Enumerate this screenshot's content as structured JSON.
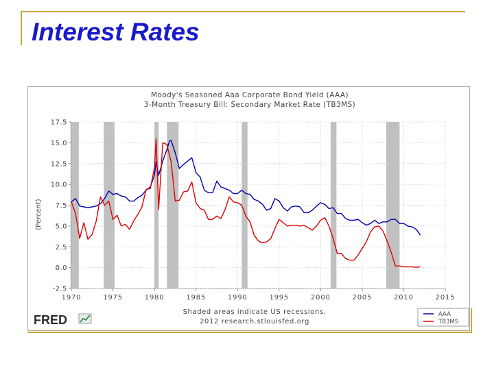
{
  "slide": {
    "title": "Interest Rates"
  },
  "chart_data": {
    "type": "line",
    "title": "Moody's Seasoned Aaa Corporate Bond Yield (AAA)",
    "subtitle": "3-Month Treasury Bill: Secondary Market Rate (TB3MS)",
    "ylabel": "(Percent)",
    "xlabel": "",
    "xlim": [
      1970,
      2015
    ],
    "ylim": [
      -2.5,
      17.5
    ],
    "x_ticks": [
      1970,
      1975,
      1980,
      1985,
      1990,
      1995,
      2000,
      2005,
      2010,
      2015
    ],
    "y_ticks": [
      -2.5,
      0.0,
      2.5,
      5.0,
      7.5,
      10.0,
      12.5,
      15.0,
      17.5
    ],
    "y_tick_labels": [
      "-2.5",
      "0.0",
      "2.5",
      "5.0",
      "7.5",
      "10.0",
      "12.5",
      "15.0",
      "17.5"
    ],
    "recessions": [
      [
        1969.9,
        1970.9
      ],
      [
        1973.9,
        1975.2
      ],
      [
        1980.0,
        1980.5
      ],
      [
        1981.5,
        1982.9
      ],
      [
        1990.5,
        1991.2
      ],
      [
        2001.2,
        2001.9
      ],
      [
        2007.9,
        2009.5
      ]
    ],
    "footnote": [
      "Shaded areas indicate US recessions.",
      "2012 research.stlouisfed.org"
    ],
    "logo_text": "FRED",
    "legend": {
      "placement": "bottom-right",
      "entries": [
        "AAA",
        "TB3MS"
      ]
    },
    "series": [
      {
        "name": "AAA",
        "color": "#0000aa",
        "x": [
          1970,
          1970.5,
          1971,
          1971.5,
          1972,
          1972.5,
          1973,
          1973.5,
          1974,
          1974.5,
          1975,
          1975.5,
          1976,
          1976.5,
          1977,
          1977.5,
          1978,
          1978.5,
          1979,
          1979.5,
          1980,
          1980.2,
          1980.5,
          1981,
          1981.5,
          1981.8,
          1982,
          1982.5,
          1983,
          1983.5,
          1984,
          1984.5,
          1985,
          1985.5,
          1986,
          1986.5,
          1987,
          1987.5,
          1988,
          1988.5,
          1989,
          1989.5,
          1990,
          1990.5,
          1991,
          1991.5,
          1992,
          1992.5,
          1993,
          1993.5,
          1994,
          1994.5,
          1995,
          1995.5,
          1996,
          1996.5,
          1997,
          1997.5,
          1998,
          1998.5,
          1999,
          1999.5,
          2000,
          2000.5,
          2001,
          2001.5,
          2002,
          2002.5,
          2003,
          2003.5,
          2004,
          2004.5,
          2005,
          2005.5,
          2006,
          2006.5,
          2007,
          2007.5,
          2008,
          2008.5,
          2009,
          2009.5,
          2010,
          2010.5,
          2011,
          2011.5,
          2012
        ],
        "y": [
          7.9,
          8.3,
          7.4,
          7.3,
          7.2,
          7.3,
          7.4,
          7.7,
          8.3,
          9.2,
          8.8,
          8.9,
          8.6,
          8.5,
          8.0,
          8.0,
          8.4,
          8.7,
          9.3,
          9.7,
          11.1,
          12.7,
          11.1,
          12.8,
          14.2,
          15.2,
          15.3,
          13.8,
          11.9,
          12.4,
          12.8,
          13.2,
          11.4,
          10.9,
          9.3,
          9.0,
          9.0,
          10.4,
          9.7,
          9.5,
          9.3,
          8.9,
          8.9,
          9.3,
          8.9,
          8.8,
          8.2,
          8.0,
          7.6,
          6.9,
          7.1,
          8.3,
          8.0,
          7.2,
          6.8,
          7.3,
          7.4,
          7.3,
          6.6,
          6.6,
          6.9,
          7.4,
          7.8,
          7.6,
          7.1,
          7.2,
          6.5,
          6.5,
          5.9,
          5.7,
          5.7,
          5.8,
          5.4,
          5.1,
          5.3,
          5.7,
          5.3,
          5.5,
          5.5,
          5.8,
          5.8,
          5.3,
          5.3,
          5.0,
          4.9,
          4.6,
          3.9
        ]
      },
      {
        "name": "TB3MS",
        "color": "#dd0000",
        "x": [
          1970,
          1970.5,
          1971,
          1971.5,
          1972,
          1972.5,
          1973,
          1973.5,
          1974,
          1974.5,
          1975,
          1975.5,
          1976,
          1976.5,
          1977,
          1977.5,
          1978,
          1978.5,
          1979,
          1979.5,
          1980,
          1980.2,
          1980.5,
          1981,
          1981.5,
          1981.8,
          1982,
          1982.5,
          1983,
          1983.5,
          1984,
          1984.5,
          1985,
          1985.5,
          1986,
          1986.5,
          1987,
          1987.5,
          1988,
          1988.5,
          1989,
          1989.5,
          1990,
          1990.5,
          1991,
          1991.5,
          1992,
          1992.5,
          1993,
          1993.5,
          1994,
          1994.5,
          1995,
          1995.5,
          1996,
          1996.5,
          1997,
          1997.5,
          1998,
          1998.5,
          1999,
          1999.5,
          2000,
          2000.5,
          2001,
          2001.5,
          2002,
          2002.5,
          2003,
          2003.5,
          2004,
          2004.5,
          2005,
          2005.5,
          2006,
          2006.5,
          2007,
          2007.5,
          2008,
          2008.5,
          2009,
          2009.5,
          2010,
          2010.5,
          2011,
          2011.5,
          2012
        ],
        "y": [
          7.9,
          6.5,
          3.5,
          5.4,
          3.4,
          4.0,
          5.6,
          8.5,
          7.5,
          8.0,
          5.8,
          6.3,
          5.0,
          5.2,
          4.6,
          5.6,
          6.4,
          7.3,
          9.4,
          9.5,
          12.0,
          15.5,
          7.0,
          15.0,
          14.8,
          13.5,
          12.8,
          8.0,
          8.1,
          9.1,
          9.2,
          10.3,
          7.8,
          7.1,
          6.9,
          5.8,
          5.8,
          6.2,
          5.9,
          7.0,
          8.5,
          7.9,
          7.8,
          7.5,
          6.2,
          5.5,
          3.9,
          3.2,
          3.0,
          3.1,
          3.5,
          4.7,
          5.8,
          5.4,
          5.0,
          5.1,
          5.1,
          5.0,
          5.1,
          4.8,
          4.5,
          5.0,
          5.7,
          6.0,
          5.0,
          3.5,
          1.7,
          1.7,
          1.1,
          0.9,
          0.9,
          1.5,
          2.3,
          3.1,
          4.3,
          4.9,
          5.0,
          4.4,
          3.2,
          1.8,
          0.2,
          0.2,
          0.1,
          0.1,
          0.1,
          0.05,
          0.1
        ]
      }
    ]
  }
}
